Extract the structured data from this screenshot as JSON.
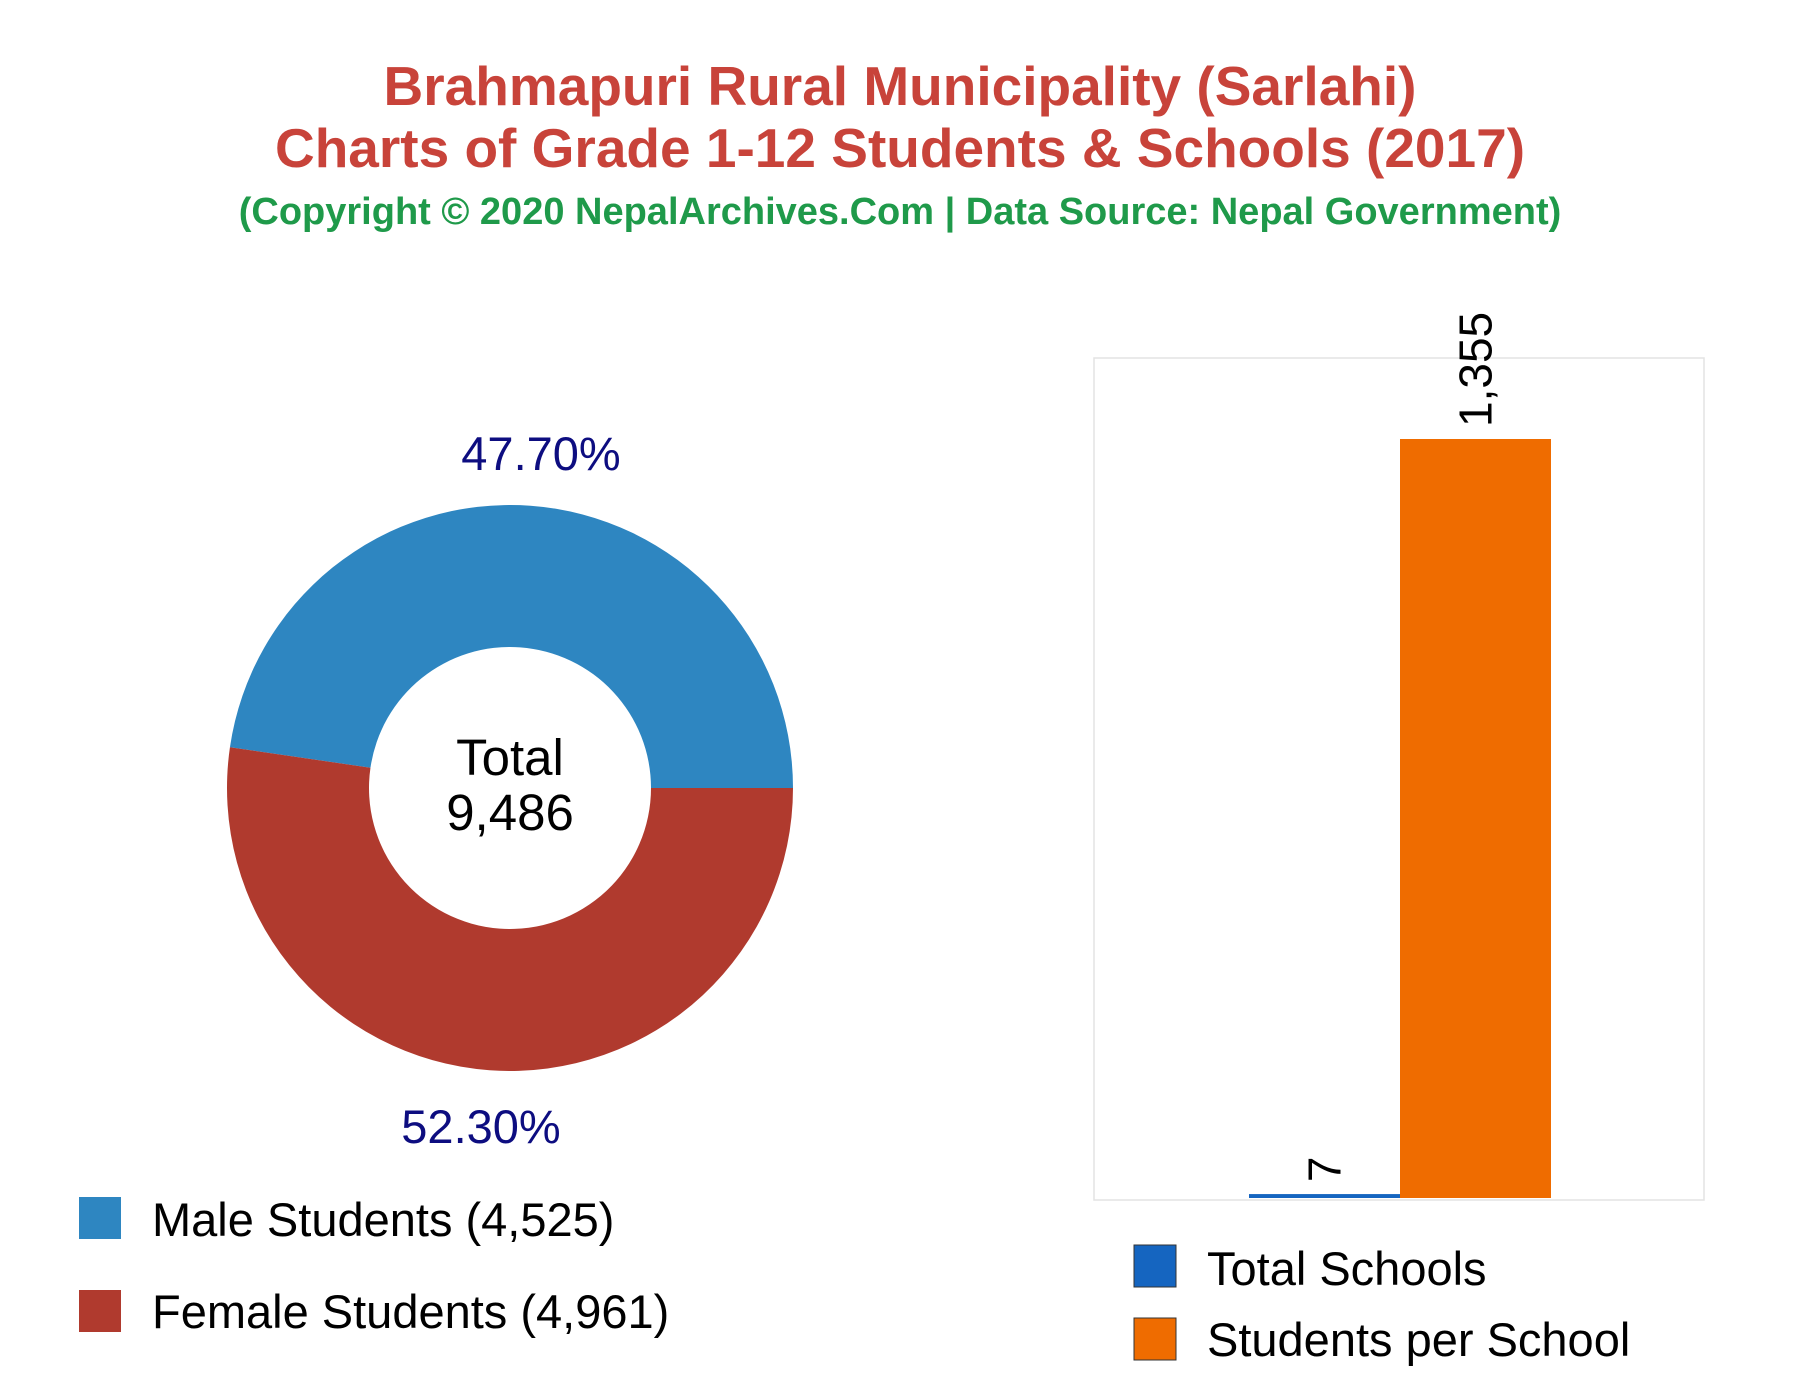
{
  "header": {
    "title_line1": "Brahmapuri Rural Municipality (Sarlahi)",
    "title_line2": "Charts of Grade 1-12 Students & Schools (2017)",
    "subtitle": "(Copyright © 2020 NepalArchives.Com | Data Source: Nepal Government)"
  },
  "colors": {
    "title": "#c8433a",
    "subtitle": "#1f9a4a",
    "male": "#2e86c1",
    "female": "#b03a2e",
    "schools": "#1565c0",
    "students_per_school": "#ef6c00",
    "percent_label": "#0d0d80"
  },
  "chart_data": [
    {
      "type": "pie",
      "style": "donut",
      "slices": [
        {
          "label": "Male Students (4,525)",
          "value": 4525,
          "percent_label": "47.70%",
          "color": "#2e86c1"
        },
        {
          "label": "Female Students (4,961)",
          "value": 4961,
          "percent_label": "52.30%",
          "color": "#b03a2e"
        }
      ],
      "center_label": "Total",
      "center_value": "9,486",
      "legend_placement": "bottom-left"
    },
    {
      "type": "bar",
      "categories": [
        "Total Schools",
        "Students per School"
      ],
      "values": [
        7,
        1355
      ],
      "value_labels": [
        "7",
        "1,355"
      ],
      "colors": [
        "#1565c0",
        "#ef6c00"
      ],
      "ylim": [
        0,
        1355
      ],
      "grid": false,
      "legend_placement": "bottom"
    }
  ]
}
